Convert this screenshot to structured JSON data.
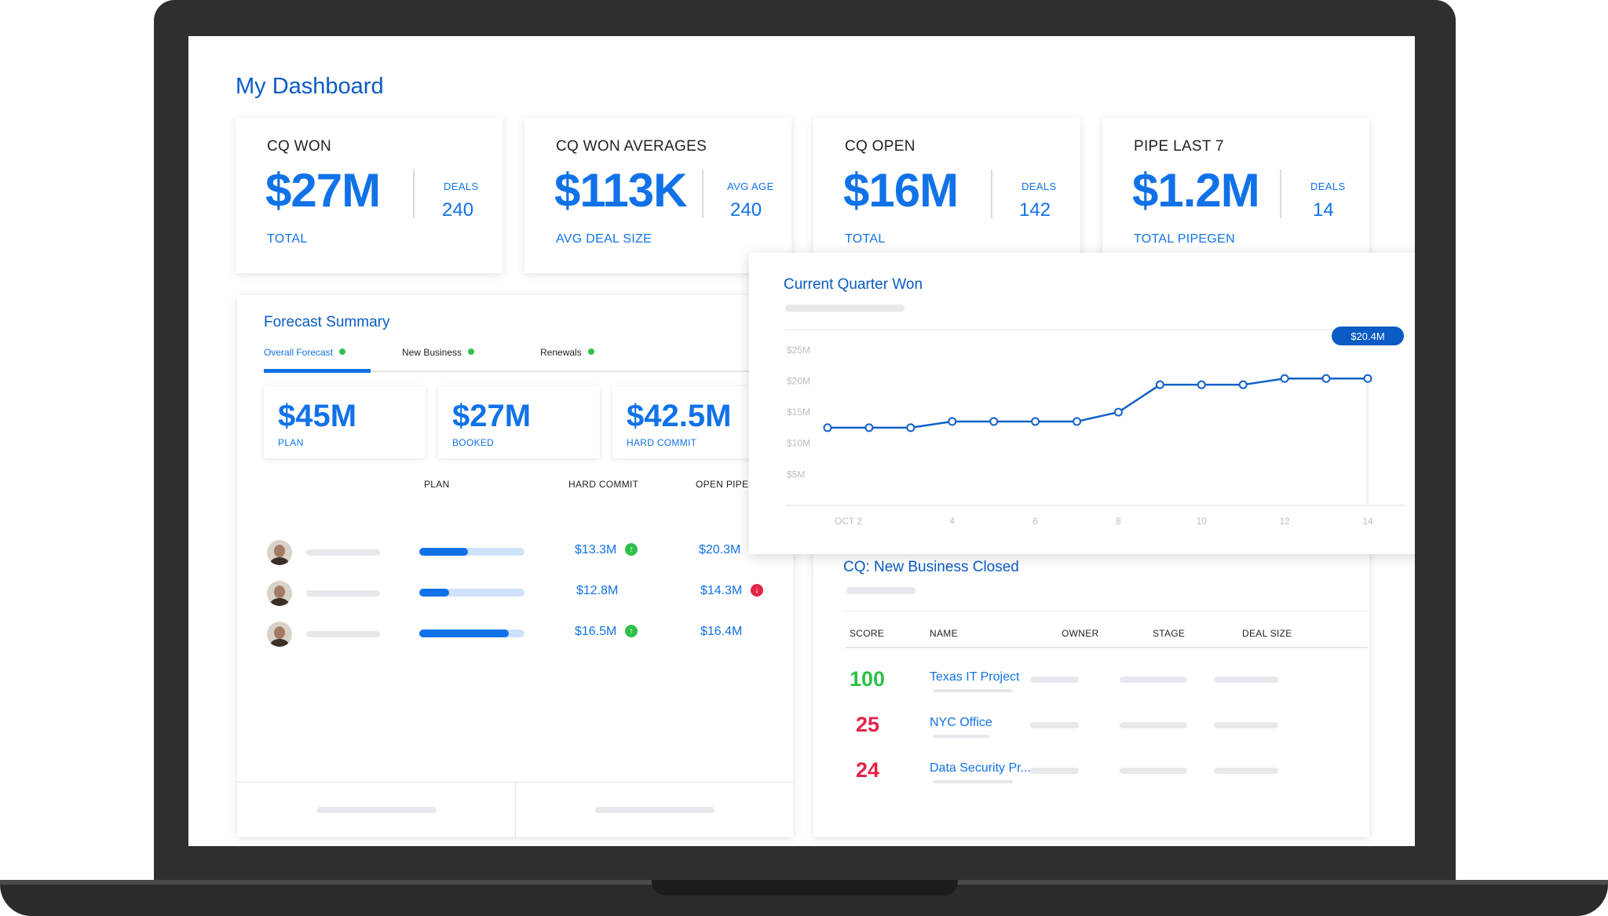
{
  "page_title": "My Dashboard",
  "kpis": [
    {
      "label": "CQ WON",
      "value": "$27M",
      "sub_label": "DEALS",
      "sub_value": "240",
      "foot": "TOTAL"
    },
    {
      "label": "CQ WON AVERAGES",
      "value": "$113K",
      "sub_label": "AVG AGE",
      "sub_value": "240",
      "foot": "AVG DEAL SIZE"
    },
    {
      "label": "CQ OPEN",
      "value": "$16M",
      "sub_label": "DEALS",
      "sub_value": "142",
      "foot": "TOTAL"
    },
    {
      "label": "PIPE LAST 7",
      "value": "$1.2M",
      "sub_label": "DEALS",
      "sub_value": "14",
      "foot": "TOTAL PIPEGEN"
    }
  ],
  "forecast": {
    "title": "Forecast Summary",
    "tabs": [
      {
        "label": "Overall Forecast",
        "active": true
      },
      {
        "label": "New Business",
        "active": false
      },
      {
        "label": "Renewals",
        "active": false
      }
    ],
    "summary": [
      {
        "value": "$45M",
        "label": "PLAN"
      },
      {
        "value": "$27M",
        "label": "BOOKED"
      },
      {
        "value": "$42.5M",
        "label": "HARD COMMIT"
      }
    ],
    "columns": {
      "plan": "PLAN",
      "hard_commit": "HARD COMMIT",
      "open_pipe": "OPEN PIPE"
    },
    "rows": [
      {
        "plan_progress": 0.46,
        "hard_commit": "$13.3M",
        "trend": "up",
        "open_pipe": "$20.3M",
        "open_trend": ""
      },
      {
        "plan_progress": 0.28,
        "hard_commit": "$12.8M",
        "trend": "",
        "open_pipe": "$14.3M",
        "open_trend": "down"
      },
      {
        "plan_progress": 0.85,
        "hard_commit": "$16.5M",
        "trend": "up",
        "open_pipe": "$16.4M",
        "open_trend": ""
      }
    ]
  },
  "chart": {
    "title": "Current Quarter Won",
    "tooltip": "$20.4M"
  },
  "chart_data": {
    "type": "line",
    "title": "Current Quarter Won",
    "xlabel": "",
    "ylabel": "",
    "x": [
      1,
      2,
      3,
      4,
      5,
      6,
      7,
      8,
      9,
      10,
      11,
      12,
      13,
      14
    ],
    "values": [
      12.5,
      12.5,
      12.5,
      13.5,
      13.5,
      13.5,
      13.5,
      15,
      19.4,
      19.4,
      19.4,
      20.4,
      20.4,
      20.4
    ],
    "x_tick_values": [
      1.5,
      4,
      6,
      8,
      10,
      12,
      14
    ],
    "x_tick_labels": [
      "OCT 2",
      "4",
      "6",
      "8",
      "10",
      "12",
      "14"
    ],
    "y_ticks": [
      "$5M",
      "$10M",
      "$15M",
      "$20M",
      "$25M"
    ],
    "ylim": [
      0,
      28
    ],
    "grid": false,
    "color": "#1160c9"
  },
  "new_business": {
    "title": "CQ: New Business Closed",
    "columns": [
      "SCORE",
      "NAME",
      "OWNER",
      "STAGE",
      "DEAL SIZE"
    ],
    "rows": [
      {
        "score": "100",
        "score_color": "#2ec14a",
        "name": "Texas IT Project"
      },
      {
        "score": "25",
        "score_color": "#e22447",
        "name": "NYC Office"
      },
      {
        "score": "24",
        "score_color": "#e22447",
        "name": "Data Security Pr..."
      }
    ]
  }
}
